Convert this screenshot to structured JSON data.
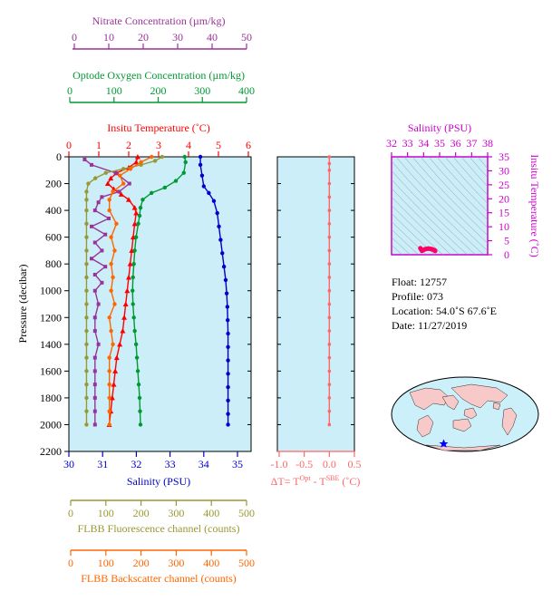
{
  "info": {
    "float": "Float:  12757",
    "profile": "Profile:  073",
    "location": "Location:  54.0˚S  67.6˚E",
    "date": "Date:  11/27/2019"
  },
  "axes": {
    "nitrate": {
      "label": "Nitrate Concentration (µm/kg)",
      "ticks": [
        "0",
        "10",
        "20",
        "30",
        "40",
        "50"
      ],
      "range": [
        0,
        50
      ],
      "color": "#993399"
    },
    "oxygen": {
      "label": "Optode Oxygen Concentration (µm/kg)",
      "ticks": [
        "0",
        "100",
        "200",
        "300",
        "400"
      ],
      "range": [
        0,
        400
      ],
      "color": "#009933"
    },
    "temperature": {
      "label": "Insitu Temperature (˚C)",
      "ticks": [
        "0",
        "1",
        "2",
        "3",
        "4",
        "5",
        "6"
      ],
      "range": [
        0,
        6
      ],
      "color": "#ff0000"
    },
    "pressure": {
      "label": "Pressure (decibar)",
      "ticks": [
        "0",
        "200",
        "400",
        "600",
        "800",
        "1000",
        "1200",
        "1400",
        "1600",
        "1800",
        "2000",
        "2200"
      ],
      "range": [
        0,
        2200
      ],
      "color": "#000000"
    },
    "salinity": {
      "label": "Salinity (PSU)",
      "ticks": [
        "30",
        "31",
        "32",
        "33",
        "34",
        "35"
      ],
      "range": [
        30,
        35
      ],
      "color": "#0000cc"
    },
    "fluorescence": {
      "label": "FLBB Fluorescence channel (counts)",
      "ticks": [
        "0",
        "100",
        "200",
        "300",
        "400",
        "500"
      ],
      "range": [
        0,
        500
      ],
      "color": "#999933"
    },
    "backscatter": {
      "label": "FLBB Backscatter channel (counts)",
      "ticks": [
        "0",
        "100",
        "200",
        "300",
        "400",
        "500"
      ],
      "range": [
        0,
        500
      ],
      "color": "#ff6600"
    },
    "dt": {
      "label_main": "ΔT= T",
      "sup1": "Opt",
      "label_mid": " - T",
      "sup2": "SBE",
      "label_end": " (˚C)",
      "ticks": [
        "-1.0",
        "-0.5",
        "0.0",
        "0.5"
      ],
      "range": [
        -1.0,
        0.5
      ],
      "color": "#ff6666"
    },
    "ts_salinity": {
      "label": "Salinity (PSU)",
      "ticks": [
        "32",
        "33",
        "34",
        "35",
        "36",
        "37",
        "38"
      ],
      "range": [
        32,
        38
      ],
      "color": "#cc00cc"
    },
    "ts_temperature": {
      "label": "Insitu Temperature (˚C)",
      "ticks": [
        "0",
        "5",
        "10",
        "15",
        "20",
        "25",
        "30",
        "35"
      ],
      "range": [
        0,
        35
      ],
      "color": "#cc00cc"
    }
  },
  "chart_data": [
    {
      "type": "line",
      "title": "",
      "ylabel": "Pressure (decibar)",
      "ylim": [
        2200,
        0
      ],
      "panel_background": "#cceef8",
      "series": [
        {
          "axis": "salinity",
          "color": "#0000cc",
          "marker": "circle",
          "points": [
            [
              33.9,
              0
            ],
            [
              33.9,
              60
            ],
            [
              33.95,
              140
            ],
            [
              34.0,
              220
            ],
            [
              34.15,
              270
            ],
            [
              34.3,
              330
            ],
            [
              34.4,
              420
            ],
            [
              34.45,
              520
            ],
            [
              34.5,
              620
            ],
            [
              34.55,
              720
            ],
            [
              34.6,
              820
            ],
            [
              34.65,
              920
            ],
            [
              34.68,
              1020
            ],
            [
              34.7,
              1120
            ],
            [
              34.71,
              1220
            ],
            [
              34.72,
              1320
            ],
            [
              34.72,
              1420
            ],
            [
              34.72,
              1520
            ],
            [
              34.72,
              1620
            ],
            [
              34.72,
              1720
            ],
            [
              34.72,
              1820
            ],
            [
              34.72,
              1920
            ],
            [
              34.72,
              2000
            ]
          ]
        },
        {
          "axis": "temperature",
          "color": "#ff0000",
          "marker": "triangle",
          "points": [
            [
              2.3,
              0
            ],
            [
              2.25,
              40
            ],
            [
              2.0,
              80
            ],
            [
              1.6,
              120
            ],
            [
              1.4,
              160
            ],
            [
              1.3,
              200
            ],
            [
              1.5,
              240
            ],
            [
              1.75,
              280
            ],
            [
              2.0,
              320
            ],
            [
              2.2,
              380
            ],
            [
              2.25,
              420
            ],
            [
              2.2,
              500
            ],
            [
              2.15,
              600
            ],
            [
              2.1,
              700
            ],
            [
              2.05,
              800
            ],
            [
              2.0,
              900
            ],
            [
              1.95,
              1000
            ],
            [
              1.9,
              1100
            ],
            [
              1.85,
              1200
            ],
            [
              1.8,
              1300
            ],
            [
              1.7,
              1400
            ],
            [
              1.6,
              1500
            ],
            [
              1.55,
              1600
            ],
            [
              1.5,
              1700
            ],
            [
              1.45,
              1800
            ],
            [
              1.4,
              1900
            ],
            [
              1.35,
              2000
            ]
          ]
        },
        {
          "axis": "oxygen",
          "color": "#009933",
          "marker": "circle",
          "points": [
            [
              260,
              0
            ],
            [
              262,
              40
            ],
            [
              258,
              120
            ],
            [
              240,
              180
            ],
            [
              215,
              230
            ],
            [
              185,
              270
            ],
            [
              165,
              320
            ],
            [
              160,
              380
            ],
            [
              158,
              440
            ],
            [
              155,
              500
            ],
            [
              150,
              600
            ],
            [
              147,
              700
            ],
            [
              145,
              800
            ],
            [
              143,
              900
            ],
            [
              142,
              1000
            ],
            [
              143,
              1100
            ],
            [
              145,
              1200
            ],
            [
              147,
              1300
            ],
            [
              150,
              1400
            ],
            [
              152,
              1500
            ],
            [
              154,
              1600
            ],
            [
              156,
              1700
            ],
            [
              158,
              1800
            ],
            [
              159,
              1900
            ],
            [
              160,
              2000
            ]
          ]
        },
        {
          "axis": "nitrate",
          "color": "#993399",
          "marker": "square",
          "points": [
            [
              3,
              20
            ],
            [
              5,
              60
            ],
            [
              12,
              120
            ],
            [
              16,
              200
            ],
            [
              13,
              260
            ],
            [
              8,
              300
            ],
            [
              7,
              340
            ],
            [
              6,
              400
            ],
            [
              10,
              460
            ],
            [
              5,
              520
            ],
            [
              9,
              580
            ],
            [
              6,
              640
            ],
            [
              8,
              700
            ],
            [
              5,
              760
            ],
            [
              9,
              820
            ],
            [
              6,
              880
            ],
            [
              8,
              940
            ],
            [
              6,
              1000
            ],
            [
              7,
              1100
            ],
            [
              6,
              1200
            ],
            [
              6,
              1300
            ],
            [
              7,
              1400
            ],
            [
              6,
              1500
            ],
            [
              6,
              1600
            ],
            [
              6,
              1700
            ],
            [
              6,
              1800
            ],
            [
              6,
              1900
            ],
            [
              6,
              2000
            ]
          ]
        },
        {
          "axis": "fluorescence",
          "color": "#999933",
          "marker": "circle",
          "points": [
            [
              260,
              0
            ],
            [
              240,
              30
            ],
            [
              200,
              60
            ],
            [
              150,
              90
            ],
            [
              100,
              120
            ],
            [
              70,
              160
            ],
            [
              50,
              200
            ],
            [
              45,
              260
            ],
            [
              45,
              320
            ],
            [
              45,
              400
            ],
            [
              45,
              500
            ],
            [
              45,
              600
            ],
            [
              45,
              700
            ],
            [
              45,
              800
            ],
            [
              45,
              900
            ],
            [
              45,
              1000
            ],
            [
              45,
              1100
            ],
            [
              45,
              1200
            ],
            [
              45,
              1300
            ],
            [
              45,
              1400
            ],
            [
              45,
              1500
            ],
            [
              45,
              1600
            ],
            [
              45,
              1700
            ],
            [
              45,
              1800
            ],
            [
              45,
              1900
            ],
            [
              45,
              2000
            ]
          ]
        },
        {
          "axis": "backscatter",
          "color": "#ff6600",
          "marker": "circle",
          "points": [
            [
              230,
              0
            ],
            [
              200,
              40
            ],
            [
              170,
              90
            ],
            [
              140,
              140
            ],
            [
              150,
              200
            ],
            [
              120,
              260
            ],
            [
              110,
              320
            ],
            [
              110,
              400
            ],
            [
              130,
              500
            ],
            [
              115,
              600
            ],
            [
              125,
              700
            ],
            [
              115,
              800
            ],
            [
              120,
              900
            ],
            [
              115,
              1000
            ],
            [
              125,
              1100
            ],
            [
              110,
              1200
            ],
            [
              115,
              1300
            ],
            [
              120,
              1400
            ],
            [
              110,
              1500
            ],
            [
              110,
              1600
            ],
            [
              110,
              1700
            ],
            [
              110,
              1800
            ],
            [
              110,
              1900
            ],
            [
              110,
              2000
            ]
          ]
        }
      ]
    },
    {
      "type": "line",
      "xlabel": "ΔT= TOpt - TSBE (˚C)",
      "ylim": [
        2200,
        0
      ],
      "panel_background": "#cceef8",
      "series": [
        {
          "color": "#ff6666",
          "marker": "circle",
          "points": [
            [
              0.0,
              0
            ],
            [
              0.0,
              50
            ],
            [
              0.0,
              100
            ],
            [
              0.0,
              200
            ],
            [
              0.0,
              300
            ],
            [
              0.0,
              400
            ],
            [
              0.0,
              500
            ],
            [
              0.0,
              600
            ],
            [
              0.0,
              700
            ],
            [
              0.0,
              800
            ],
            [
              0.0,
              900
            ],
            [
              0.0,
              1000
            ],
            [
              0.0,
              1100
            ],
            [
              0.0,
              1200
            ],
            [
              0.0,
              1300
            ],
            [
              0.0,
              1400
            ],
            [
              0.0,
              1500
            ],
            [
              0.0,
              1600
            ],
            [
              0.0,
              1700
            ],
            [
              0.0,
              1800
            ],
            [
              0.0,
              1900
            ],
            [
              0.0,
              2000
            ]
          ]
        }
      ]
    },
    {
      "type": "scatter",
      "xlabel": "Salinity (PSU)",
      "ylabel": "Insitu Temperature (˚C)",
      "xlim": [
        32,
        38
      ],
      "ylim": [
        0,
        35
      ],
      "panel_background": "#cceef8",
      "series": [
        {
          "color": "#ff0066",
          "points": [
            [
              33.8,
              2.3
            ],
            [
              33.9,
              1.4
            ],
            [
              34.1,
              2.0
            ],
            [
              34.3,
              2.2
            ],
            [
              34.5,
              2.0
            ],
            [
              34.6,
              1.8
            ],
            [
              34.7,
              1.5
            ],
            [
              34.72,
              1.35
            ]
          ]
        }
      ]
    }
  ]
}
